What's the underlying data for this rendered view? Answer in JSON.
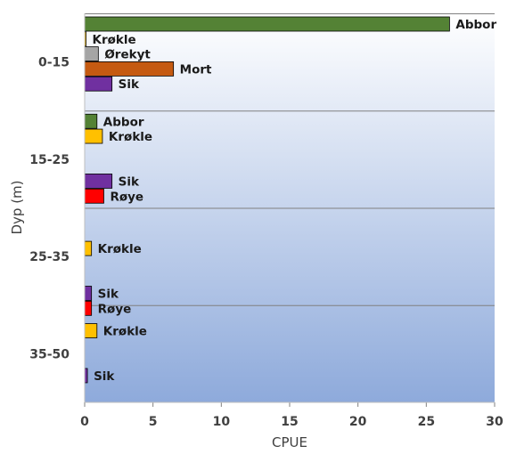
{
  "chart_data": {
    "type": "bar",
    "orientation": "horizontal",
    "xlabel": "CPUE",
    "ylabel": "Dyp (m)",
    "xlim": [
      0,
      30
    ],
    "xticks": [
      "0",
      "5",
      "10",
      "15",
      "20",
      "25",
      "30"
    ],
    "groups": [
      {
        "name": "0-15",
        "bars": [
          {
            "species": "Abbor",
            "value": 26.7
          },
          {
            "species": "Krøkle",
            "value": 0.1
          },
          {
            "species": "Ørekyt",
            "value": 1.0
          },
          {
            "species": "Mort",
            "value": 6.5
          },
          {
            "species": "Sik",
            "value": 2.0
          }
        ]
      },
      {
        "name": "15-25",
        "bars": [
          {
            "species": "Abbor",
            "value": 0.9
          },
          {
            "species": "Krøkle",
            "value": 1.3
          },
          {
            "species": "Sik",
            "value": 2.0
          },
          {
            "species": "Røye",
            "value": 1.4
          }
        ]
      },
      {
        "name": "25-35",
        "bars": [
          {
            "species": "Krøkle",
            "value": 0.5
          },
          {
            "species": "Sik",
            "value": 0.5
          },
          {
            "species": "Røye",
            "value": 0.5
          }
        ]
      },
      {
        "name": "35-50",
        "bars": [
          {
            "species": "Krøkle",
            "value": 0.9
          },
          {
            "species": "Sik",
            "value": 0.2
          }
        ]
      }
    ],
    "colors": {
      "Abbor": "#548235",
      "Krøkle": "#ffc000",
      "Ørekyt": "#a5a5a5",
      "Mort": "#c55a11",
      "Sik": "#7030a0",
      "Røye": "#ff0000"
    },
    "background_gradient": [
      "#ffffff",
      "#8eaadb"
    ],
    "grid": false,
    "legend": "none"
  }
}
